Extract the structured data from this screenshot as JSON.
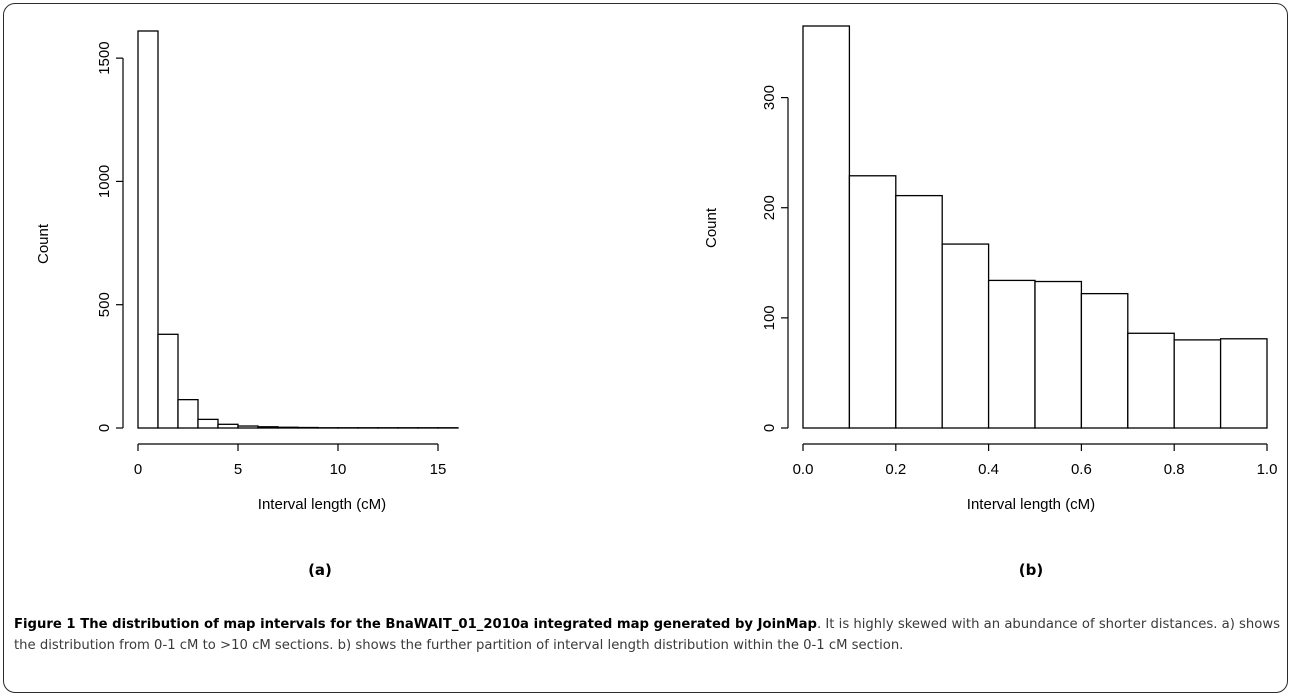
{
  "panels": [
    {
      "label": "(a)",
      "xlabel": "Interval length (cM)",
      "ylabel": "Count"
    },
    {
      "label": "(b)",
      "xlabel": "Interval length (cM)",
      "ylabel": "Count"
    }
  ],
  "caption": {
    "title": "Figure 1 The distribution of map intervals for the BnaWAIT_01_2010a integrated map generated by JoinMap",
    "body": ". It is highly skewed with an abundance of shorter distances. a) shows the distribution from 0-1 cM to >10 cM sections. b) shows the further partition of interval length distribution within the 0-1 cM section."
  },
  "chart_data": [
    {
      "type": "bar",
      "title": "",
      "xlabel": "Interval length (cM)",
      "ylabel": "Count",
      "bin_edges": [
        0,
        1,
        2,
        3,
        4,
        5,
        6,
        7,
        8,
        9,
        10,
        11,
        12,
        13,
        14,
        15,
        16
      ],
      "values": [
        1610,
        380,
        115,
        35,
        15,
        8,
        5,
        3,
        2,
        1,
        1,
        1,
        1,
        1,
        1,
        1
      ],
      "xlim": [
        0,
        16
      ],
      "ylim": [
        0,
        1610
      ],
      "x_ticks": [
        0,
        5,
        10,
        15
      ],
      "x_tick_labels": [
        "0",
        "5",
        "10",
        "15"
      ],
      "y_ticks": [
        0,
        500,
        1000,
        1500
      ],
      "y_tick_labels": [
        "0",
        "500",
        "1000",
        "1500"
      ],
      "grid": false
    },
    {
      "type": "bar",
      "title": "",
      "xlabel": "Interval length (cM)",
      "ylabel": "Count",
      "bin_edges": [
        0.0,
        0.1,
        0.2,
        0.3,
        0.4,
        0.5,
        0.6,
        0.7,
        0.8,
        0.9,
        1.0
      ],
      "values": [
        365,
        229,
        211,
        167,
        134,
        133,
        122,
        86,
        80,
        81
      ],
      "xlim": [
        0,
        1
      ],
      "ylim": [
        0,
        365
      ],
      "x_ticks": [
        0.0,
        0.2,
        0.4,
        0.6,
        0.8,
        1.0
      ],
      "x_tick_labels": [
        "0.0",
        "0.2",
        "0.4",
        "0.6",
        "0.8",
        "1.0"
      ],
      "y_ticks": [
        0,
        100,
        200,
        300
      ],
      "y_tick_labels": [
        "0",
        "100",
        "200",
        "300"
      ],
      "grid": false
    }
  ]
}
